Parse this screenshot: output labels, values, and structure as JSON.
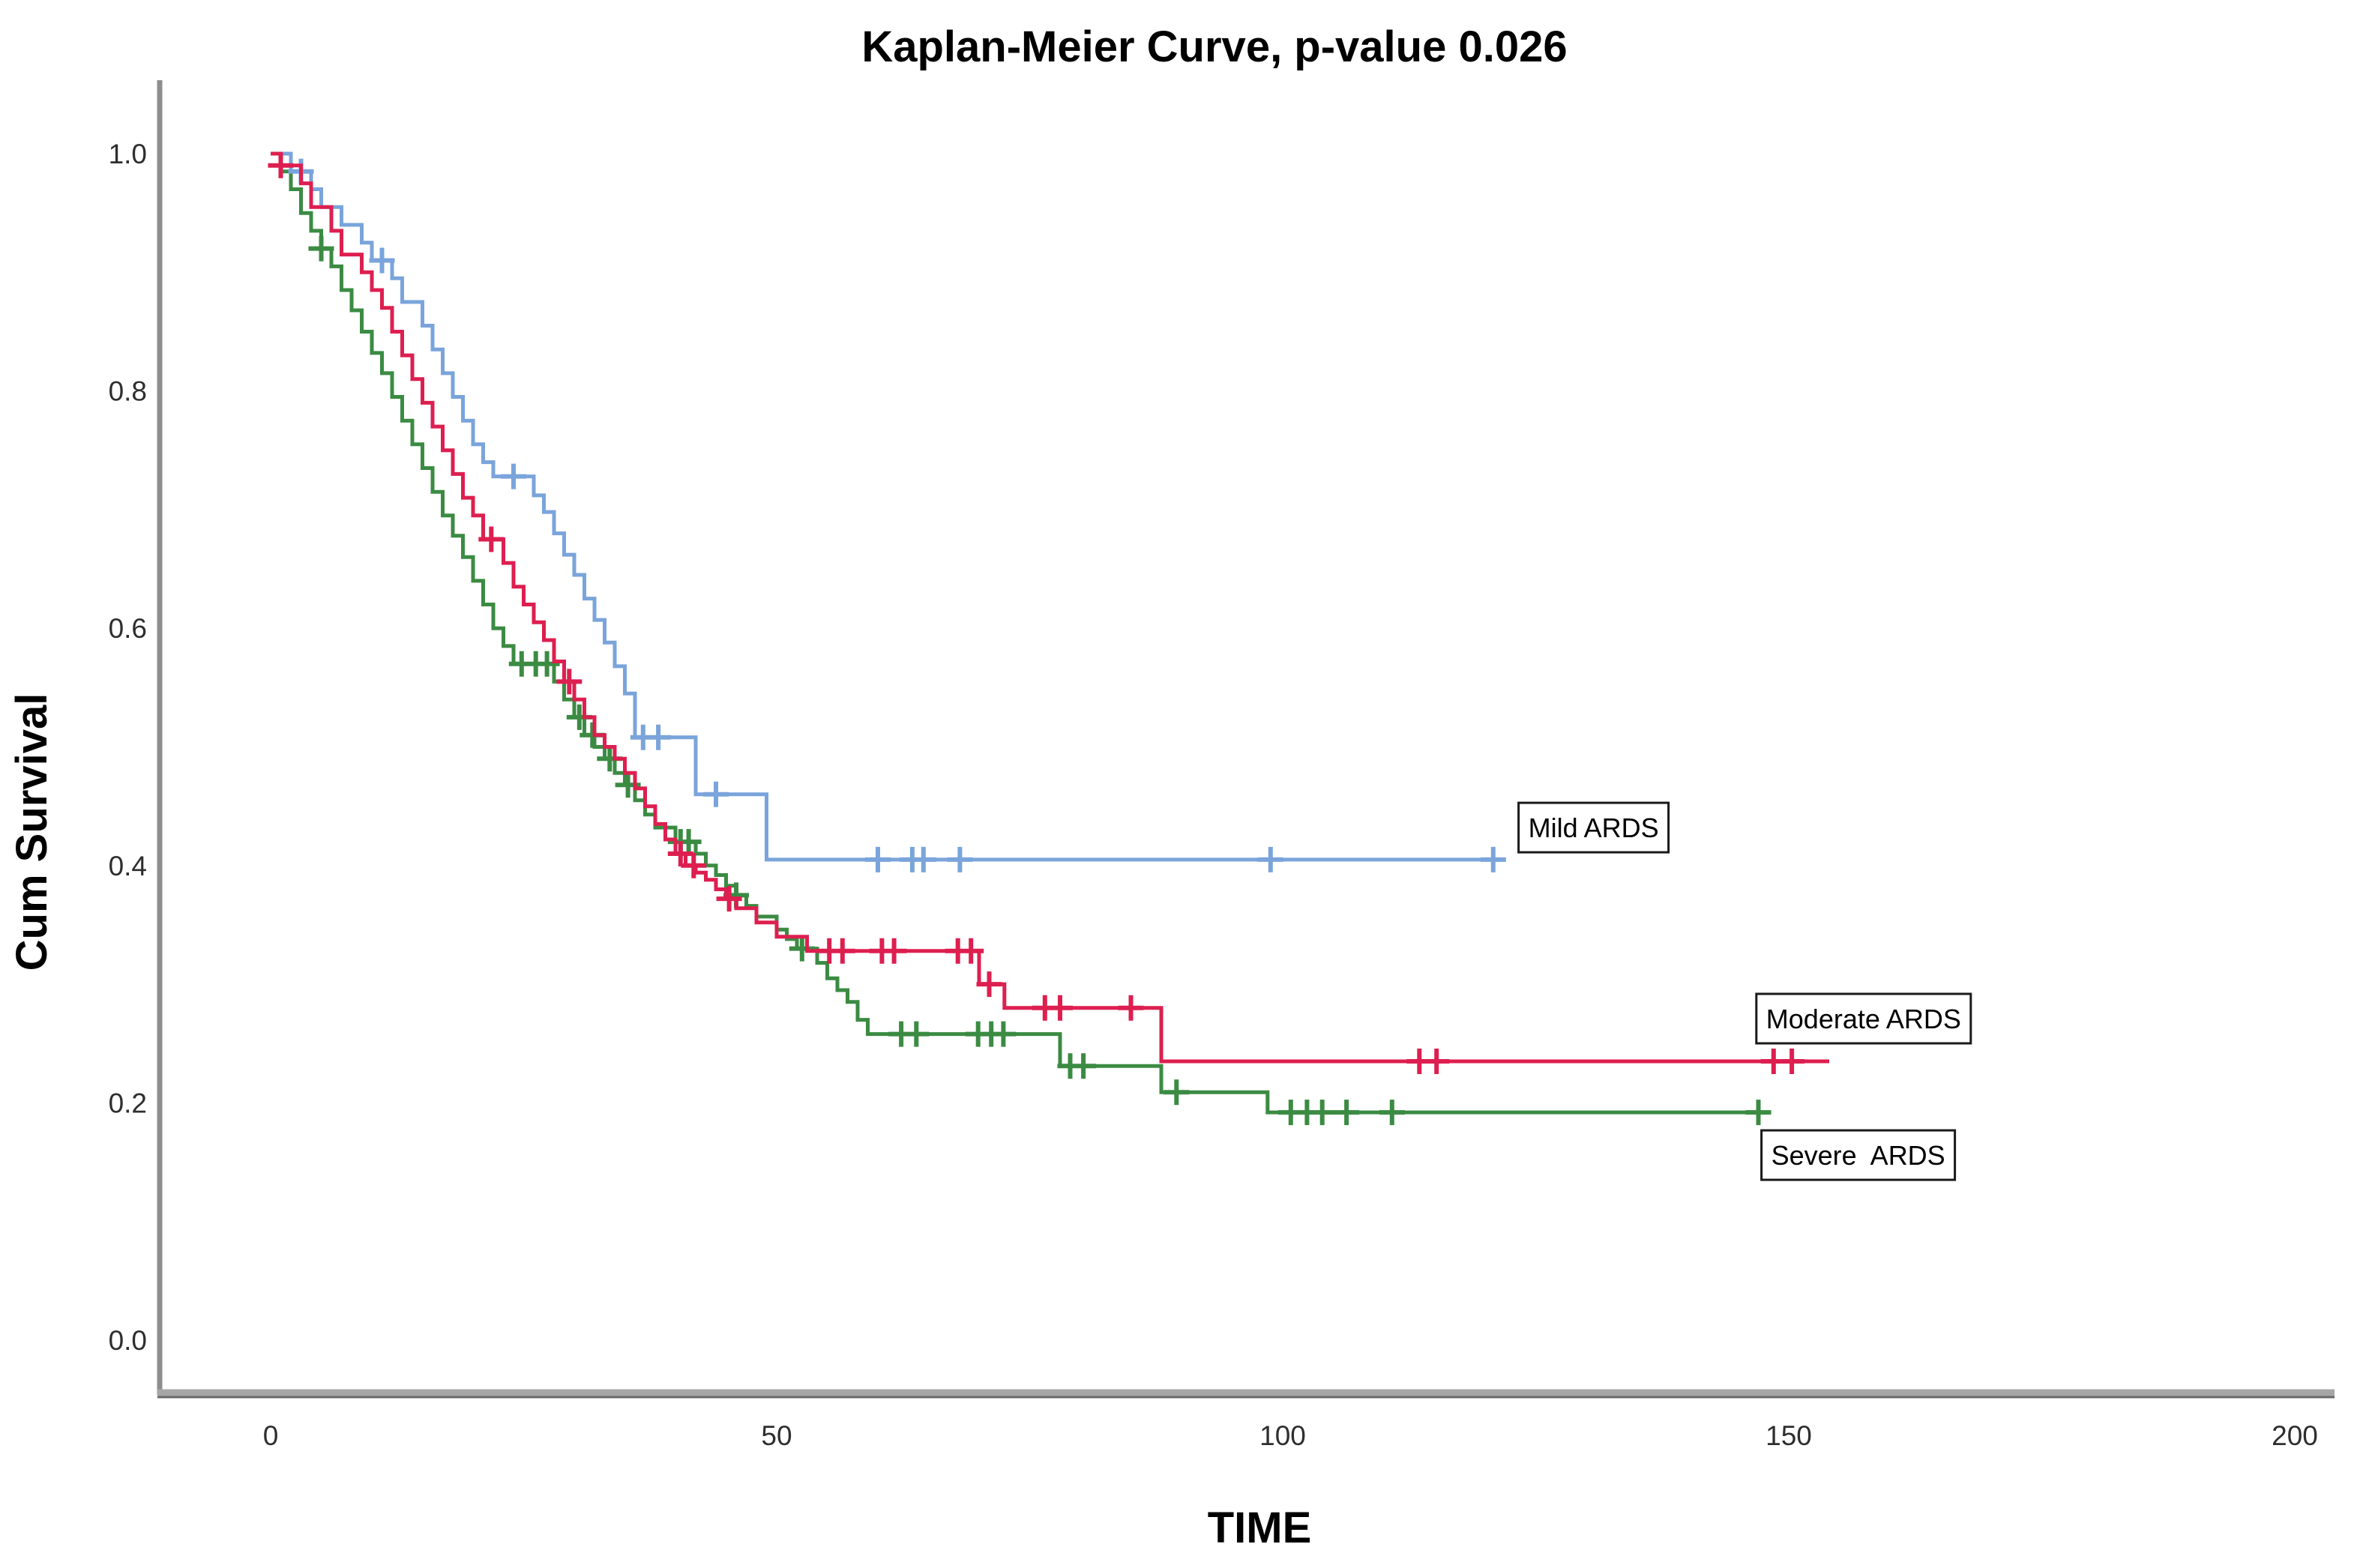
{
  "title": "Kaplan-Meier Curve, p-value 0.026",
  "axes": {
    "x": {
      "label": "TIME",
      "ticks": [
        0,
        50,
        100,
        150,
        200
      ]
    },
    "y": {
      "label": "Cum Survival",
      "ticks": [
        "1.0",
        "0.8",
        "0.6",
        "0.4",
        "0.2",
        "0.0"
      ],
      "tick_values": [
        1.0,
        0.8,
        0.6,
        0.4,
        0.2,
        0.0
      ]
    }
  },
  "chart_data": {
    "type": "line",
    "subtype": "kaplan-meier-step-survival",
    "title": "Kaplan-Meier Curve, p-value 0.026",
    "p_value": "0.026",
    "xlabel": "TIME",
    "ylabel": "Cum Survival",
    "xlim": [
      0,
      215
    ],
    "ylim": [
      0.0,
      1.0
    ],
    "grid": false,
    "legend_style": "boxed-inline-labels",
    "series": [
      {
        "name": "Mild ARDS",
        "color": "#7AA4DB",
        "steps": [
          [
            0,
            1.0
          ],
          [
            2,
            0.985
          ],
          [
            4,
            0.97
          ],
          [
            5,
            0.955
          ],
          [
            7,
            0.94
          ],
          [
            9,
            0.925
          ],
          [
            10,
            0.91
          ],
          [
            12,
            0.895
          ],
          [
            13,
            0.875
          ],
          [
            15,
            0.855
          ],
          [
            16,
            0.835
          ],
          [
            17,
            0.815
          ],
          [
            18,
            0.795
          ],
          [
            19,
            0.775
          ],
          [
            20,
            0.755
          ],
          [
            21,
            0.74
          ],
          [
            22,
            0.728
          ],
          [
            26,
            0.712
          ],
          [
            27,
            0.698
          ],
          [
            28,
            0.68
          ],
          [
            29,
            0.662
          ],
          [
            30,
            0.645
          ],
          [
            31,
            0.625
          ],
          [
            32,
            0.607
          ],
          [
            33,
            0.588
          ],
          [
            34,
            0.568
          ],
          [
            35,
            0.545
          ],
          [
            36,
            0.508
          ],
          [
            42,
            0.46
          ],
          [
            49,
            0.405
          ]
        ],
        "end_time": 122,
        "censor_times": [
          3,
          11,
          24,
          36.8,
          38.3,
          44,
          60,
          63.4,
          64.5,
          68.1,
          98.8,
          120.8
        ],
        "final_value": 0.405,
        "label_pos": {
          "t": 123.3,
          "v": 0.432
        }
      },
      {
        "name": "Moderate ARDS",
        "color": "#DD1F50",
        "steps": [
          [
            0,
            1.0
          ],
          [
            1,
            0.99
          ],
          [
            3,
            0.975
          ],
          [
            4,
            0.955
          ],
          [
            6,
            0.935
          ],
          [
            7,
            0.915
          ],
          [
            9,
            0.9
          ],
          [
            10,
            0.885
          ],
          [
            11,
            0.87
          ],
          [
            12,
            0.85
          ],
          [
            13,
            0.83
          ],
          [
            14,
            0.81
          ],
          [
            15,
            0.79
          ],
          [
            16,
            0.77
          ],
          [
            17,
            0.75
          ],
          [
            18,
            0.73
          ],
          [
            19,
            0.71
          ],
          [
            20,
            0.695
          ],
          [
            21,
            0.675
          ],
          [
            23,
            0.655
          ],
          [
            24,
            0.635
          ],
          [
            25,
            0.62
          ],
          [
            26,
            0.605
          ],
          [
            27,
            0.59
          ],
          [
            28,
            0.572
          ],
          [
            29,
            0.555
          ],
          [
            30,
            0.54
          ],
          [
            31,
            0.525
          ],
          [
            32,
            0.51
          ],
          [
            33,
            0.5
          ],
          [
            34,
            0.49
          ],
          [
            35,
            0.478
          ],
          [
            36,
            0.465
          ],
          [
            37,
            0.45
          ],
          [
            38,
            0.435
          ],
          [
            39,
            0.422
          ],
          [
            40,
            0.41
          ],
          [
            41,
            0.4
          ],
          [
            42,
            0.394
          ],
          [
            43,
            0.388
          ],
          [
            44,
            0.38
          ],
          [
            45,
            0.372
          ],
          [
            46,
            0.364
          ],
          [
            48,
            0.352
          ],
          [
            50,
            0.34
          ],
          [
            53,
            0.328
          ],
          [
            70,
            0.3
          ],
          [
            72.5,
            0.28
          ],
          [
            88,
            0.235
          ]
        ],
        "end_time": 154,
        "censor_times": [
          1,
          21.8,
          29.5,
          40.5,
          41.8,
          45.3,
          55.2,
          56.5,
          60.4,
          61.6,
          67.9,
          69.2,
          71,
          76.5,
          78,
          85,
          113.5,
          115.2,
          148.5,
          150.3
        ],
        "final_value": 0.235,
        "label_pos": {
          "t": 146.8,
          "v": 0.271
        }
      },
      {
        "name": "Severe  ARDS",
        "color": "#3B8B43",
        "steps": [
          [
            0,
            1.0
          ],
          [
            1,
            0.985
          ],
          [
            2,
            0.97
          ],
          [
            3,
            0.95
          ],
          [
            4,
            0.935
          ],
          [
            5,
            0.92
          ],
          [
            6,
            0.905
          ],
          [
            7,
            0.885
          ],
          [
            8,
            0.868
          ],
          [
            9,
            0.85
          ],
          [
            10,
            0.832
          ],
          [
            11,
            0.815
          ],
          [
            12,
            0.795
          ],
          [
            13,
            0.775
          ],
          [
            14,
            0.755
          ],
          [
            15,
            0.735
          ],
          [
            16,
            0.715
          ],
          [
            17,
            0.695
          ],
          [
            18,
            0.678
          ],
          [
            19,
            0.66
          ],
          [
            20,
            0.64
          ],
          [
            21,
            0.62
          ],
          [
            22,
            0.6
          ],
          [
            23,
            0.585
          ],
          [
            24,
            0.57
          ],
          [
            28,
            0.555
          ],
          [
            29,
            0.54
          ],
          [
            30,
            0.525
          ],
          [
            31,
            0.51
          ],
          [
            32,
            0.5
          ],
          [
            33,
            0.49
          ],
          [
            34,
            0.478
          ],
          [
            35,
            0.468
          ],
          [
            36,
            0.455
          ],
          [
            37,
            0.443
          ],
          [
            38,
            0.432
          ],
          [
            40,
            0.42
          ],
          [
            42,
            0.41
          ],
          [
            43,
            0.4
          ],
          [
            44,
            0.392
          ],
          [
            45,
            0.383
          ],
          [
            46,
            0.375
          ],
          [
            47,
            0.366
          ],
          [
            48,
            0.357
          ],
          [
            50,
            0.346
          ],
          [
            51,
            0.338
          ],
          [
            52,
            0.33
          ],
          [
            54,
            0.318
          ],
          [
            55,
            0.305
          ],
          [
            56,
            0.295
          ],
          [
            57,
            0.285
          ],
          [
            58,
            0.27
          ],
          [
            59,
            0.258
          ],
          [
            78,
            0.231
          ],
          [
            88,
            0.209
          ],
          [
            98.5,
            0.192
          ]
        ],
        "end_time": 148,
        "censor_times": [
          5,
          24.8,
          26.2,
          27.3,
          30.5,
          31.8,
          33.5,
          35.3,
          40.5,
          41.3,
          46,
          52.5,
          62.3,
          63.8,
          69.9,
          71.2,
          72.4,
          79,
          80.3,
          89.5,
          100.8,
          102.4,
          103.9,
          106.3,
          110.8,
          147
        ],
        "final_value": 0.192,
        "label_pos": {
          "t": 147.3,
          "v": 0.156
        }
      }
    ]
  }
}
